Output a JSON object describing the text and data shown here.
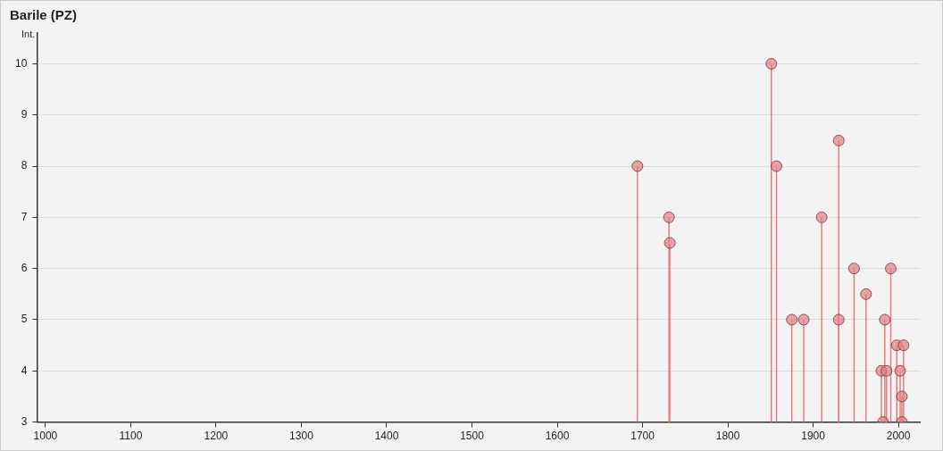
{
  "chart_data": {
    "type": "lollipop",
    "title": "Barile (PZ)",
    "ylabel": "Int.",
    "x": [
      1694,
      1731,
      1732,
      1851,
      1857,
      1875,
      1889,
      1910,
      1930,
      1930,
      1948,
      1962,
      1980,
      1982,
      1984,
      1986,
      1990,
      1991,
      1996,
      1998,
      2002,
      2003,
      2004,
      2004,
      2006
    ],
    "series": [
      {
        "color": "#e07f84",
        "values": [
          8,
          7,
          6.5,
          10,
          8,
          5,
          5,
          7,
          8.5,
          5,
          6,
          5.5,
          4,
          3,
          5,
          4,
          null,
          6,
          null,
          4.5,
          4,
          null,
          3.5,
          3,
          4.5
        ]
      }
    ],
    "xlim": [
      990,
      2025
    ],
    "xticks": [
      1000,
      1100,
      1200,
      1300,
      1400,
      1500,
      1600,
      1700,
      1800,
      1900,
      2000
    ],
    "ylim": [
      3,
      10.6
    ],
    "yticks": [
      3,
      4,
      5,
      6,
      7,
      8,
      9,
      10
    ],
    "grid": "y",
    "marker": "circle",
    "legend": false
  }
}
